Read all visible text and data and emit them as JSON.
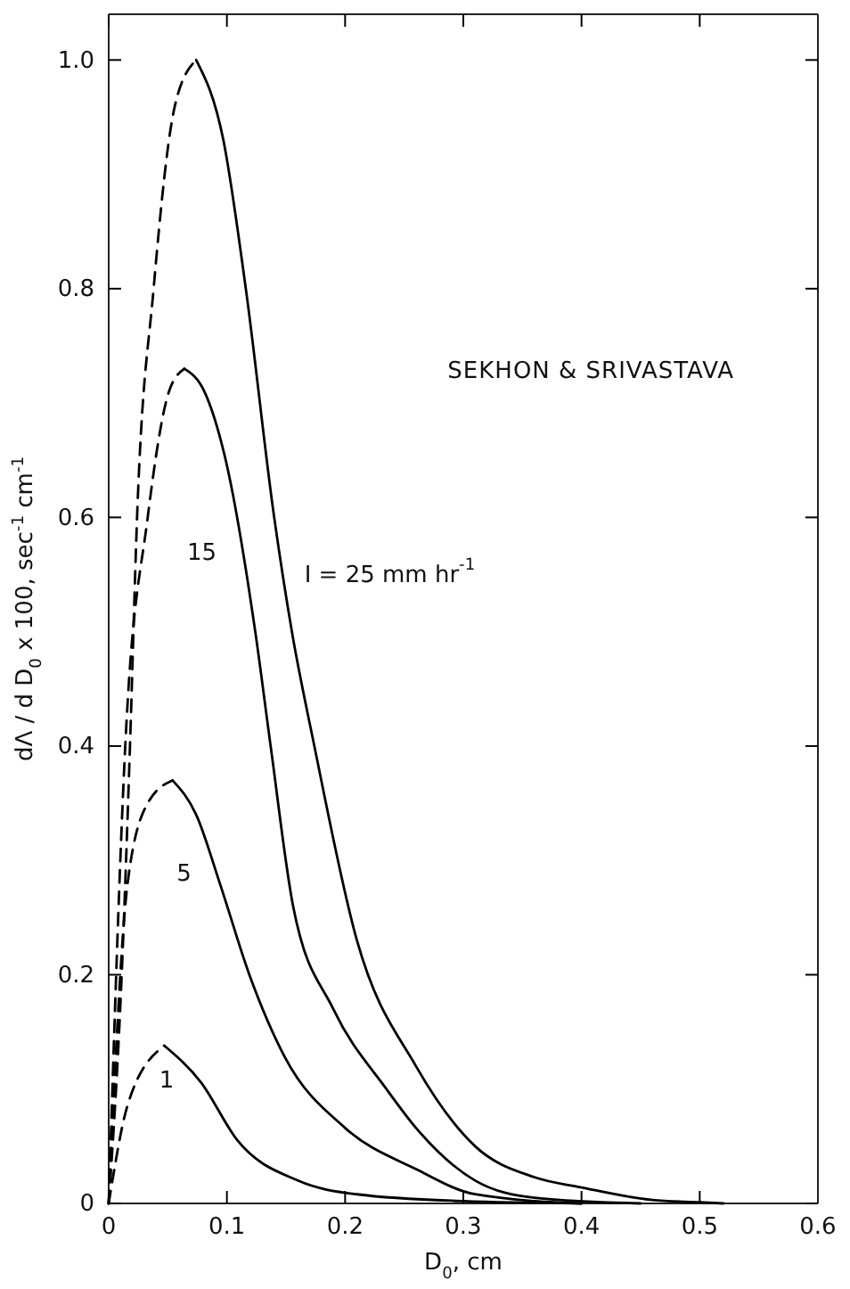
{
  "chart_data": {
    "type": "line",
    "xlabel": "D$_{0}$, cm",
    "ylabel": "dΛ / d D$_{0}$ x 100, sec$^{-1}$ cm$^{-1}$",
    "xlim": [
      0,
      0.6
    ],
    "ylim": [
      0,
      1.04
    ],
    "xticks": [
      0,
      {
        "value": 0.1,
        "label": "0.1"
      },
      {
        "value": 0.2,
        "label": "0.2"
      },
      {
        "value": 0.3,
        "label": "0.3"
      },
      {
        "value": 0.4,
        "label": "0.4"
      },
      {
        "value": 0.5,
        "label": "0.5"
      },
      {
        "value": 0.6,
        "label": "0.6"
      }
    ],
    "yticks": [
      0,
      {
        "value": 0.2,
        "label": "0.2"
      },
      {
        "value": 0.4,
        "label": "0.4"
      },
      {
        "value": 0.6,
        "label": "0.6"
      },
      {
        "value": 0.8,
        "label": "0.8"
      },
      {
        "value": 1,
        "label": "1.0"
      }
    ],
    "grid": false,
    "series": [
      {
        "color": "#000000",
        "line_style": "dashed",
        "x": [
          0,
          0.011,
          0.018,
          0.024,
          0.038,
          0.056,
          0.074
        ],
        "values": [
          0,
          0.2,
          0.4,
          0.6,
          0.8,
          0.96,
          1.0
        ]
      },
      {
        "name": "I = 25 mm hr$^{-1}$",
        "color": "#000000",
        "line_style": "solid",
        "x": [
          0.074,
          0.097,
          0.116,
          0.14,
          0.155,
          0.174,
          0.21,
          0.26,
          0.31,
          0.36,
          0.4,
          0.46,
          0.5,
          0.52
        ],
        "values": [
          1.0,
          0.93,
          0.8,
          0.6,
          0.5,
          0.4,
          0.23,
          0.12,
          0.05,
          0.023,
          0.014,
          0.003,
          0.001,
          0
        ]
      },
      {
        "color": "#000000",
        "line_style": "dashed",
        "x": [
          0,
          0.014,
          0.033,
          0.051,
          0.064
        ],
        "values": [
          0,
          0.4,
          0.6,
          0.71,
          0.73
        ]
      },
      {
        "name": "15",
        "color": "#000000",
        "line_style": "solid",
        "x": [
          0.064,
          0.081,
          0.099,
          0.124,
          0.137,
          0.156,
          0.19,
          0.235,
          0.26,
          0.31,
          0.36,
          0.45
        ],
        "values": [
          0.73,
          0.71,
          0.65,
          0.5,
          0.4,
          0.26,
          0.17,
          0.1,
          0.066,
          0.02,
          0.005,
          0
        ]
      },
      {
        "color": "#000000",
        "line_style": "dashed",
        "x": [
          0,
          0.016,
          0.033,
          0.054
        ],
        "values": [
          0,
          0.28,
          0.35,
          0.37
        ]
      },
      {
        "name": "5",
        "color": "#000000",
        "line_style": "solid",
        "x": [
          0.054,
          0.074,
          0.094,
          0.119,
          0.149,
          0.2,
          0.26,
          0.31,
          0.4
        ],
        "values": [
          0.37,
          0.34,
          0.28,
          0.2,
          0.128,
          0.066,
          0.03,
          0.008,
          0
        ]
      },
      {
        "color": "#000000",
        "line_style": "dashed",
        "x": [
          0,
          0.016,
          0.047
        ],
        "values": [
          0,
          0.086,
          0.138
        ]
      },
      {
        "name": "1",
        "color": "#000000",
        "line_style": "solid",
        "x": [
          0.047,
          0.078,
          0.109,
          0.16,
          0.21,
          0.3,
          0.4
        ],
        "values": [
          0.138,
          0.106,
          0.055,
          0.02,
          0.008,
          0.002,
          0
        ]
      }
    ],
    "annotations": [
      "SEKHON & SRIVASTAVA"
    ]
  }
}
